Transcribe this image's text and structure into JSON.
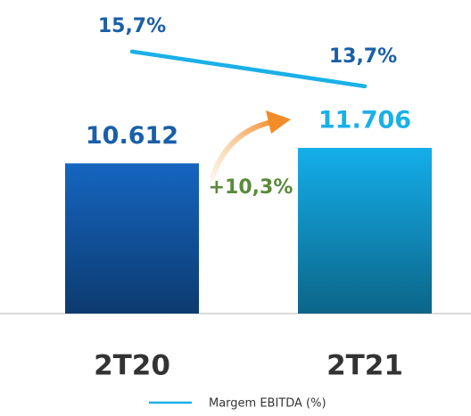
{
  "chart_data": {
    "type": "bar",
    "categories": [
      "2T20",
      "2T21"
    ],
    "series": [
      {
        "values": [
          10612,
          11706
        ],
        "value_labels": [
          "10.612",
          "11.706"
        ],
        "colors": [
          "#1565c0",
          "#14aeea"
        ],
        "label_colors": [
          "#1a5fa8",
          "#1ab0e8"
        ]
      },
      {
        "type": "line",
        "name": "Margem EBITDA (%)",
        "color": "#1ab0e8",
        "values": [
          15.7,
          13.7
        ],
        "value_labels": [
          "15,7%",
          "13,7%"
        ],
        "label_color": "#1a5fa8",
        "axis": "y2"
      }
    ],
    "annotations": [
      {
        "text": "+10,3%",
        "color": "#5a8a3a"
      }
    ]
  }
}
